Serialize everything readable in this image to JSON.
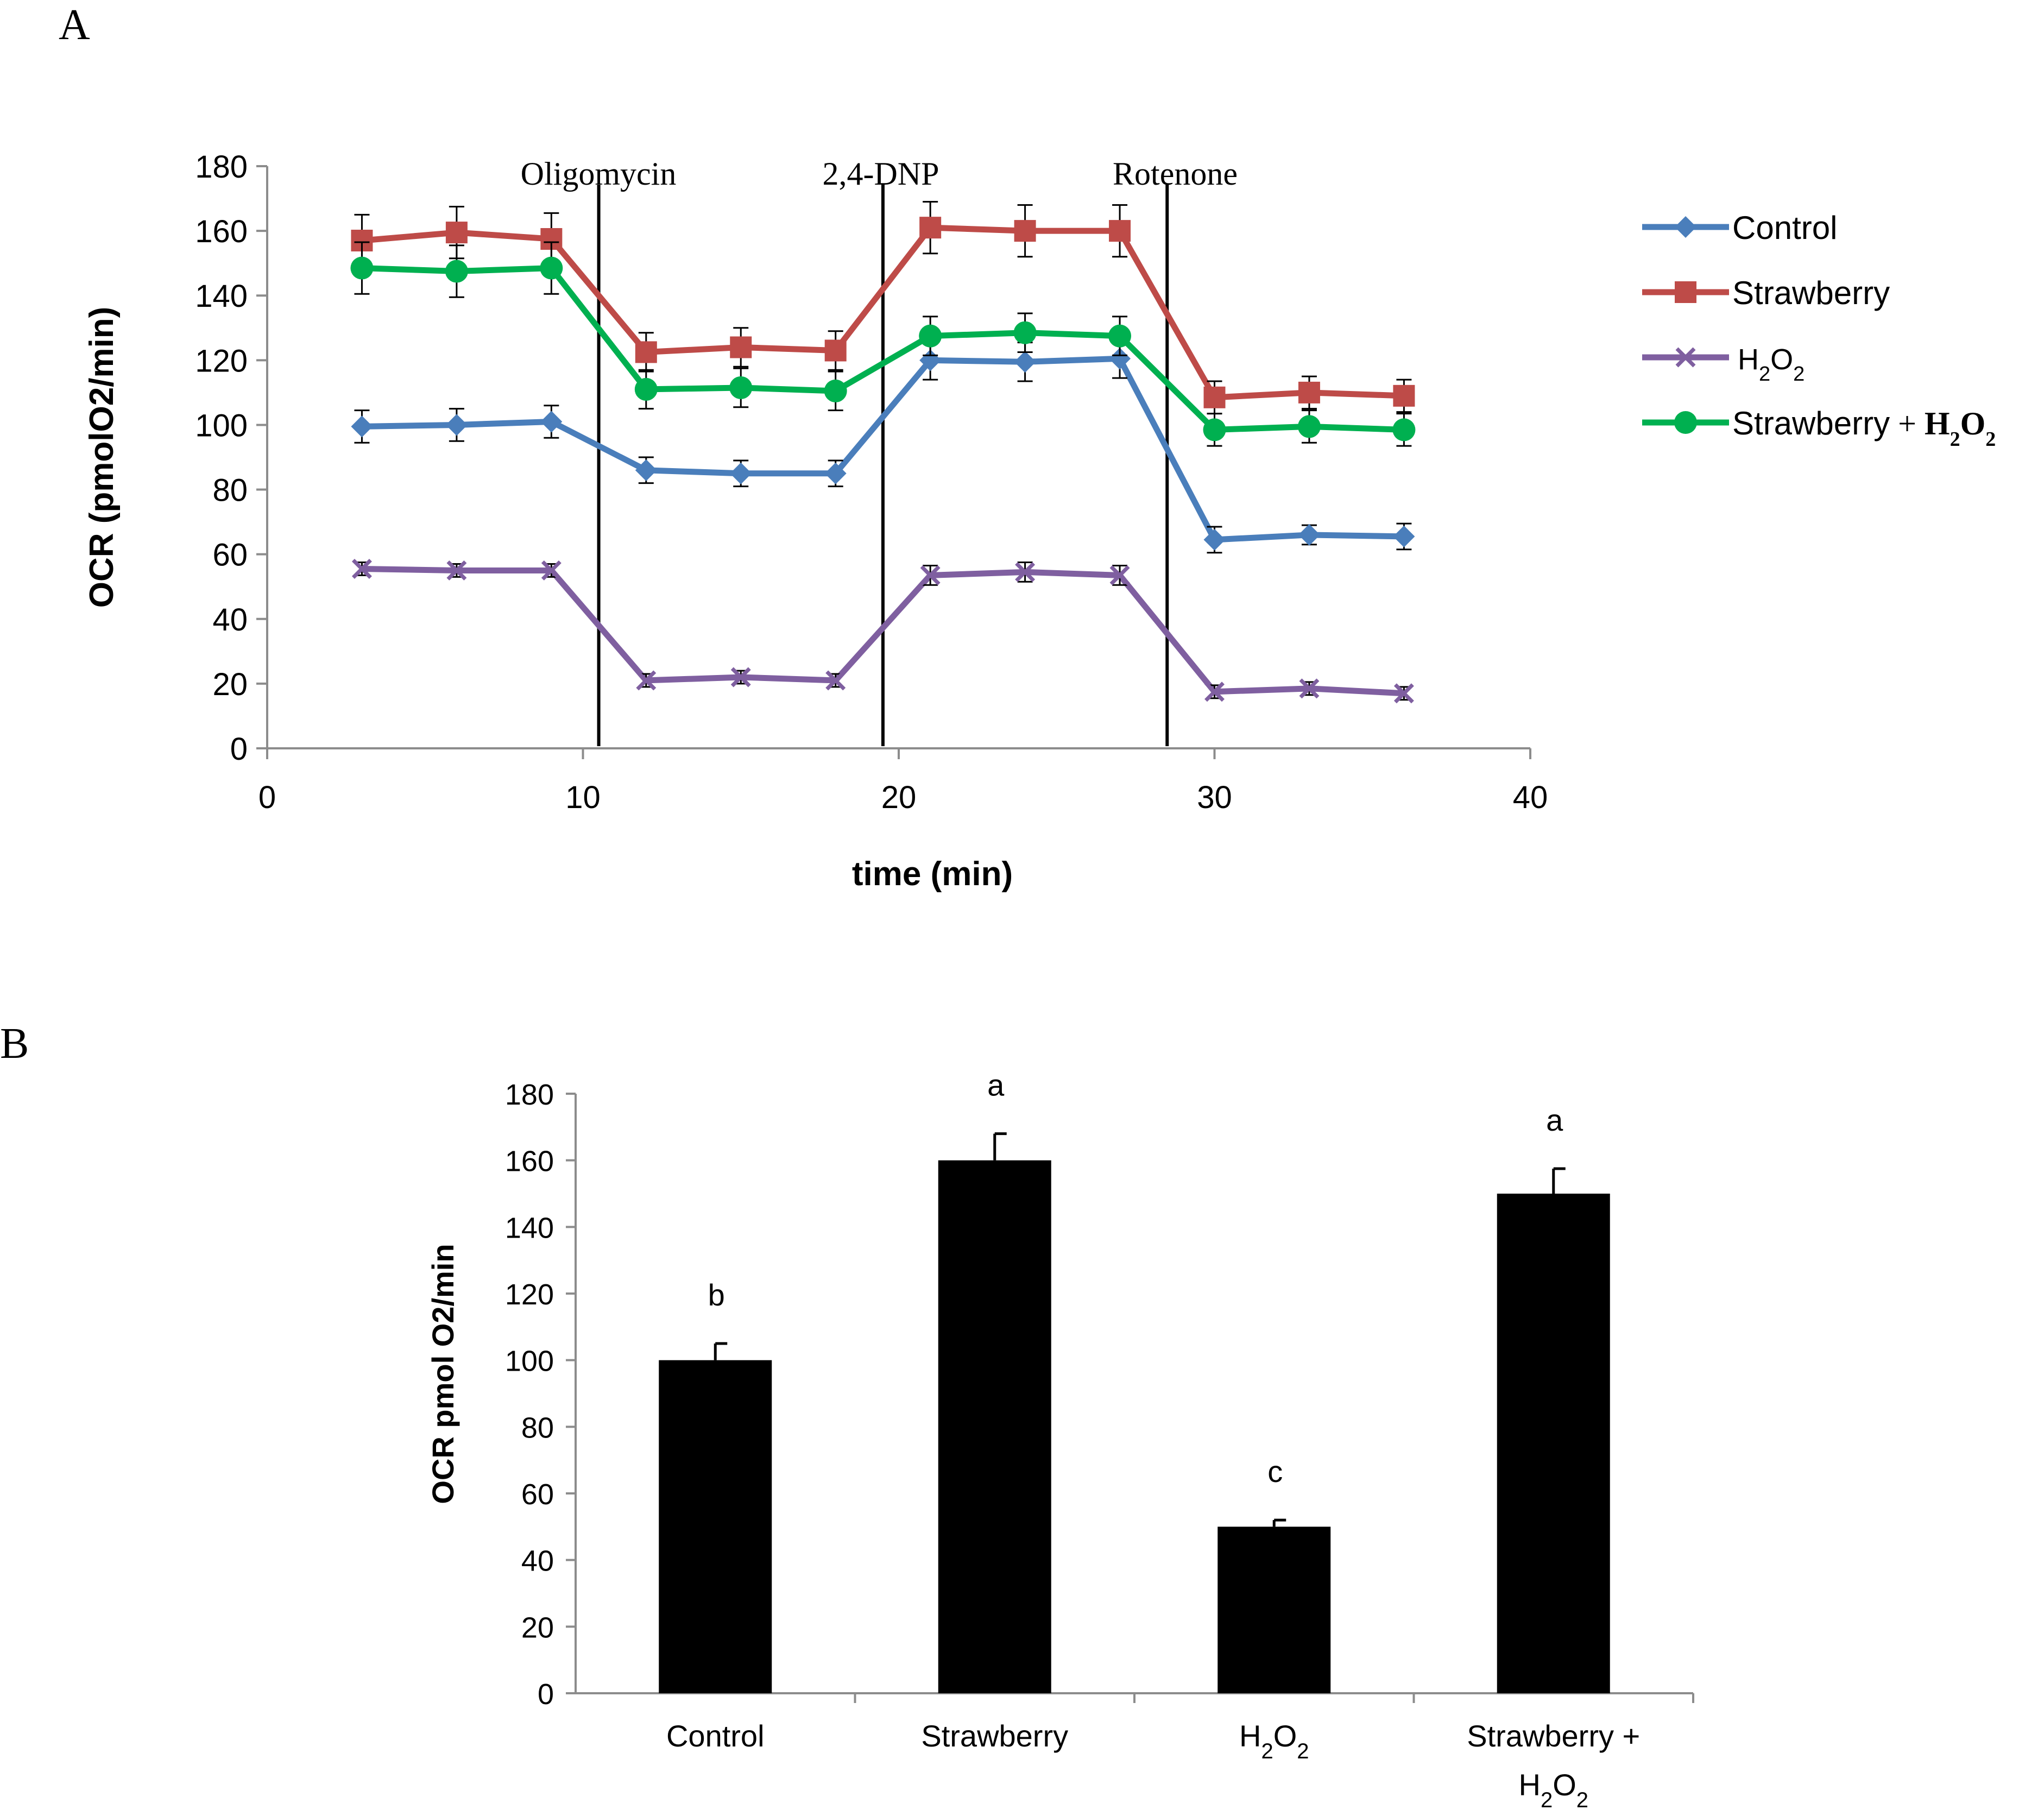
{
  "colors": {
    "control": "#4a7ebb",
    "strawberry": "#be4b48",
    "h2o2": "#7f5fa0",
    "strawberry_h2o2": "#00b050",
    "axis": "#8c8c8c",
    "bar": "#000000"
  },
  "chart_data": [
    {
      "panel_label": "A",
      "type": "line",
      "title": "",
      "xlabel": "time (min)",
      "ylabel": "OCR (pmolO2/min)",
      "xlim": [
        0,
        40
      ],
      "ylim": [
        0,
        180
      ],
      "x_ticks": [
        "0",
        "10",
        "20",
        "30",
        "40"
      ],
      "y_ticks": [
        "0",
        "20",
        "40",
        "60",
        "80",
        "100",
        "120",
        "140",
        "160",
        "180"
      ],
      "x": [
        3,
        6,
        9,
        12,
        15,
        18,
        21,
        24,
        27,
        30,
        33,
        36
      ],
      "injections": [
        {
          "label": "Oligomycin",
          "x": 10.5
        },
        {
          "label": "2,4-DNP",
          "x": 19.5
        },
        {
          "label": "Rotenone",
          "x": 28.5
        }
      ],
      "legend_position": "right",
      "series": [
        {
          "name": "Control",
          "legend_text": "Control",
          "legend_sub": "",
          "legend_tail": "",
          "marker": "diamond",
          "color_key": "control",
          "values": [
            99.5,
            100,
            101,
            86,
            85,
            85,
            120,
            119.5,
            120.5,
            64.5,
            66,
            65.5
          ],
          "errors": [
            5,
            5,
            5,
            4,
            4,
            4,
            6,
            6,
            6,
            4,
            3,
            4
          ]
        },
        {
          "name": "Strawberry",
          "legend_text": "Strawberry",
          "legend_sub": "",
          "legend_tail": "",
          "marker": "square",
          "color_key": "strawberry",
          "values": [
            157,
            159.5,
            157.5,
            122.5,
            124,
            123,
            161,
            160,
            160,
            108.5,
            110,
            109
          ],
          "errors": [
            8,
            8,
            8,
            6,
            6,
            6,
            8,
            8,
            8,
            5,
            5,
            5
          ]
        },
        {
          "name": "H2O2",
          "legend_text": "H",
          "legend_sub": "2",
          "legend_text2": "O",
          "legend_sub2": "2",
          "legend_tail": "",
          "marker": "x",
          "color_key": "h2o2",
          "values": [
            55.5,
            55,
            55,
            21,
            22,
            21,
            53.5,
            54.5,
            53.5,
            17.5,
            18.5,
            17
          ],
          "errors": [
            2,
            2,
            2,
            2,
            2,
            2,
            3,
            3,
            3,
            2,
            2,
            2
          ]
        },
        {
          "name": "Strawberry + H2O2",
          "legend_text": "Strawberry",
          "legend_tail_text": " + H",
          "legend_sub": "2",
          "legend_text2": "O",
          "legend_sub2": "2",
          "marker": "circle",
          "color_key": "strawberry_h2o2",
          "values": [
            148.5,
            147.5,
            148.5,
            111,
            111.5,
            110.5,
            127.5,
            128.5,
            127.5,
            98.5,
            99.5,
            98.5
          ],
          "errors": [
            8,
            8,
            8,
            6,
            6,
            6,
            6,
            6,
            6,
            5,
            5,
            5
          ]
        }
      ]
    },
    {
      "panel_label": "B",
      "type": "bar",
      "title": "",
      "xlabel": "",
      "ylabel": "OCR pmol O2/min",
      "ylim": [
        0,
        180
      ],
      "y_ticks": [
        "0",
        "20",
        "40",
        "60",
        "80",
        "100",
        "120",
        "140",
        "160",
        "180"
      ],
      "categories": [
        {
          "label": "Control",
          "line2": ""
        },
        {
          "label": "Strawberry",
          "line2": ""
        },
        {
          "label": "H2O2",
          "line2": ""
        },
        {
          "label": "Strawberry +",
          "line2": "H2O2"
        }
      ],
      "values": [
        100,
        160,
        50,
        150
      ],
      "errors": [
        5,
        8,
        2,
        7.5
      ],
      "significance_letters": [
        "b",
        "a",
        "c",
        "a"
      ]
    }
  ]
}
